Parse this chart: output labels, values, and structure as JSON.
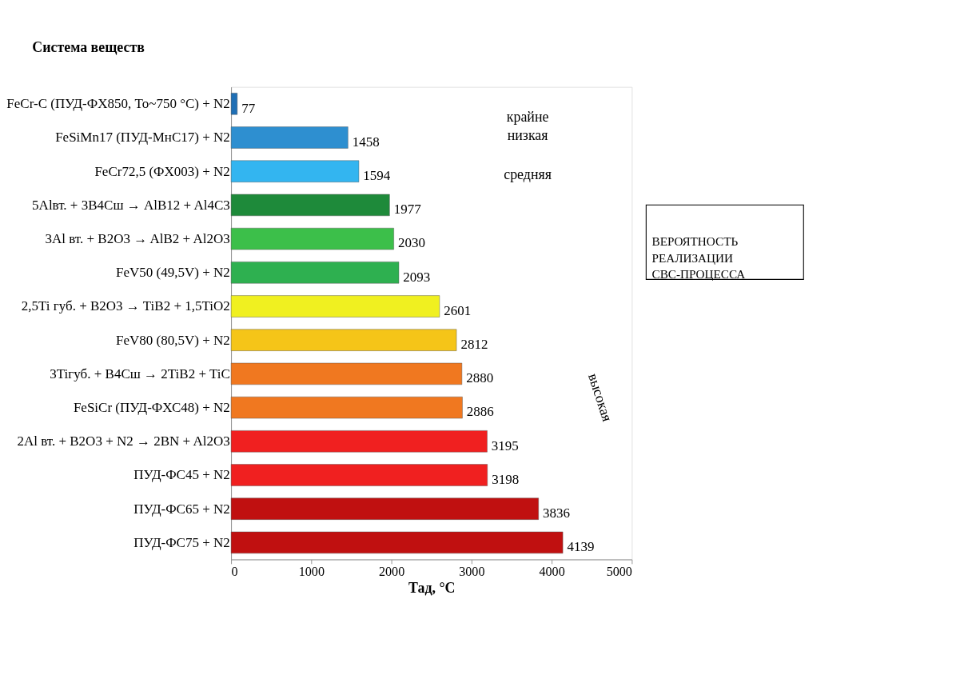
{
  "chart_data": {
    "type": "bar",
    "orientation": "horizontal",
    "ylabel": "Система веществ",
    "xlabel": "Тад, °C",
    "categories": [
      "FeCr-C (ПУД-ФХ850, To~750 °C) + N2",
      "FeSiMn17 (ПУД-МнС17) + N2",
      "FeCr72,5  (ФХ003) + N2",
      "5Alвт. + 3B4Cш → AlB12 + Al4C3",
      "3Al вт. + B2O3  → AlB2 + Al2O3",
      "FeV50 (49,5V) + N2",
      "2,5Ti губ. + B2O3 → TiB2 + 1,5TiO2",
      "FeV80 (80,5V) + N2",
      "3Tiгуб. + B4Cш → 2TiB2 + TiC",
      "FeSiCr (ПУД-ФХС48) + N2",
      "2Al вт. + B2O3 + N2 → 2BN + Al2O3",
      "ПУД-ФС45 + N2",
      "ПУД-ФС65 + N2",
      "ПУД-ФС75 + N2"
    ],
    "values": [
      77,
      1458,
      1594,
      1977,
      2030,
      2093,
      2601,
      2812,
      2880,
      2886,
      3195,
      3198,
      3836,
      4139
    ],
    "colors": [
      "#1f6fb5",
      "#2e8fd0",
      "#33b5f0",
      "#1e8a3a",
      "#3cbf4a",
      "#2eb050",
      "#f0f020",
      "#f5c518",
      "#f07820",
      "#f07820",
      "#f02020",
      "#f02020",
      "#c01010",
      "#c01010"
    ],
    "xlim": [
      0,
      5000
    ],
    "xticks": [
      0,
      1000,
      2000,
      3000,
      4000,
      5000
    ],
    "data_labels": true,
    "grid": false,
    "annotations": [
      "крайне\nнизкая",
      "средняя",
      "высокая",
      "ВЕРОЯТНОСТЬ\nРЕАЛИЗАЦИИ\nСВС-ПРОЦЕССА"
    ]
  }
}
